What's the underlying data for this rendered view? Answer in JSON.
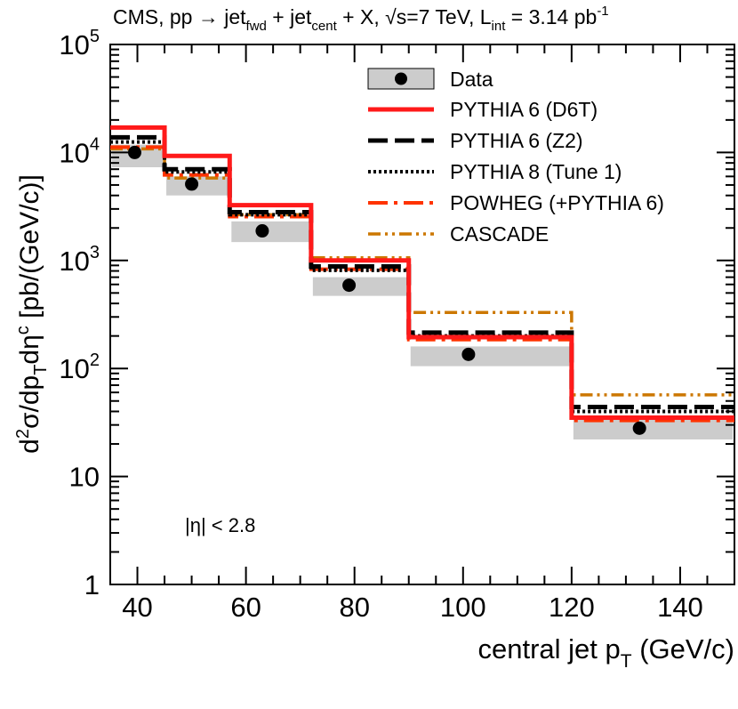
{
  "chart_data": {
    "type": "line",
    "title": {
      "prefix": "CMS, pp → jet",
      "sub1": "fwd",
      "mid1": " + jet",
      "sub2": "cent",
      "mid2": " + X, √s=7 TeV, L",
      "sub3": "int",
      "mid3": " = 3.14 pb",
      "sup": "-1"
    },
    "xlabel": {
      "main": "central jet p",
      "sub": "T",
      "tail": " (GeV/c)"
    },
    "ylabel": {
      "p1": "d",
      "s1": "2",
      "p2": "σ/dp",
      "b1": "T",
      "p3": "dη",
      "s2": "c",
      "p4": " [pb/(GeV/c)]"
    },
    "annotation": "|η| < 2.8",
    "xlim": [
      35,
      150
    ],
    "ylim": [
      1,
      100000
    ],
    "yscale": "log",
    "x_ticks": [
      {
        "value": 40,
        "label": "40"
      },
      {
        "value": 60,
        "label": "60"
      },
      {
        "value": 80,
        "label": "80"
      },
      {
        "value": 100,
        "label": "100"
      },
      {
        "value": 120,
        "label": "120"
      },
      {
        "value": 140,
        "label": "140"
      }
    ],
    "y_ticks": [
      {
        "value": 1,
        "base": "1",
        "exp": ""
      },
      {
        "value": 10,
        "base": "10",
        "exp": ""
      },
      {
        "value": 100,
        "base": "10",
        "exp": "2"
      },
      {
        "value": 1000,
        "base": "10",
        "exp": "3"
      },
      {
        "value": 10000,
        "base": "10",
        "exp": "4"
      },
      {
        "value": 100000,
        "base": "10",
        "exp": "5"
      }
    ],
    "bin_edges": [
      35,
      45,
      57,
      72,
      90,
      120,
      150
    ],
    "data": {
      "name": "Data",
      "x": [
        39.5,
        50,
        63,
        79,
        101,
        132.5
      ],
      "y": [
        10000,
        5100,
        1880,
        590,
        135,
        28
      ],
      "band_low": [
        7300,
        4000,
        1480,
        470,
        105,
        22
      ],
      "band_high": [
        11800,
        6000,
        2300,
        700,
        160,
        34
      ]
    },
    "series": [
      {
        "name": "PYTHIA 6 (D6T)",
        "color": "#ff1a1a",
        "style": "solid",
        "values": [
          17000,
          9300,
          3250,
          1000,
          195,
          35
        ]
      },
      {
        "name": "PYTHIA 6 (Z2)",
        "color": "#000000",
        "style": "dashed",
        "values": [
          13800,
          7000,
          2800,
          880,
          215,
          44
        ]
      },
      {
        "name": "PYTHIA 8 (Tune 1)",
        "color": "#000000",
        "style": "dotted",
        "values": [
          12500,
          6600,
          2650,
          810,
          200,
          40
        ]
      },
      {
        "name": "POWHEG (+PYTHIA 6)",
        "color": "#ff3300",
        "style": "dashdot",
        "values": [
          11200,
          6200,
          2550,
          830,
          185,
          33
        ]
      },
      {
        "name": "CASCADE",
        "color": "#cc7700",
        "style": "dashdotdot",
        "values": [
          10800,
          5800,
          2650,
          1060,
          330,
          57
        ]
      }
    ],
    "legend": {
      "position": "top-right"
    }
  }
}
